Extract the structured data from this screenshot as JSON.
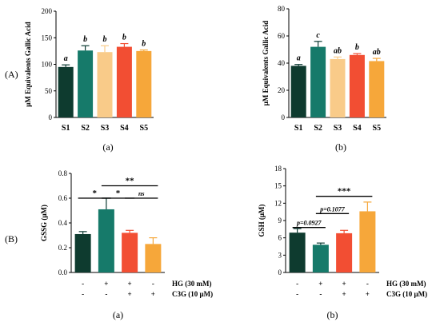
{
  "figure": {
    "rows": [
      {
        "label": "(A)"
      },
      {
        "label": "(B)"
      }
    ]
  },
  "colors": {
    "S1": "#0e3b2f",
    "S2": "#167a6a",
    "S3": "#f9cb89",
    "S4": "#f24e33",
    "S5": "#f6a73a"
  },
  "treatments": {
    "hg_label": "HG (30 mM)",
    "c3g_label": "C3G (10 μM)",
    "hg_signs": [
      "-",
      "+",
      "+",
      "-"
    ],
    "c3g_signs": [
      "-",
      "-",
      "+",
      "+"
    ]
  },
  "chart_data": [
    {
      "id": "A-a",
      "type": "bar",
      "sublabel": "(a)",
      "ylabel": "μM Equivalents Gallic Acid",
      "ylim": [
        0,
        200
      ],
      "yticks": [
        0,
        50,
        100,
        150,
        200
      ],
      "categories": [
        "S1",
        "S2",
        "S3",
        "S4",
        "S5"
      ],
      "values": [
        95,
        126,
        123,
        133,
        125
      ],
      "errors": [
        4,
        9,
        12,
        6,
        2
      ],
      "letters": [
        "a",
        "b",
        "b",
        "b",
        "b"
      ],
      "colors": [
        "#0e3b2f",
        "#167a6a",
        "#f9cb89",
        "#f24e33",
        "#f6a73a"
      ]
    },
    {
      "id": "A-b",
      "type": "bar",
      "sublabel": "(b)",
      "ylabel": "μM Equivalents Gallic Acid",
      "ylim": [
        0,
        80
      ],
      "yticks": [
        0,
        20,
        40,
        60,
        80
      ],
      "categories": [
        "S1",
        "S2",
        "S3",
        "S4",
        "S5"
      ],
      "values": [
        38,
        52,
        43,
        46,
        41.5
      ],
      "errors": [
        1,
        4,
        1.5,
        1,
        2
      ],
      "letters": [
        "a",
        "c",
        "ab",
        "b",
        "ab"
      ],
      "colors": [
        "#0e3b2f",
        "#167a6a",
        "#f9cb89",
        "#f24e33",
        "#f6a73a"
      ]
    },
    {
      "id": "B-a",
      "type": "bar",
      "sublabel": "(a)",
      "ylabel": "GSSG (μM)",
      "ylim": [
        0,
        0.8
      ],
      "yticks": [
        0,
        0.2,
        0.4,
        0.6,
        0.8
      ],
      "ytick_labels": [
        "0.0",
        "0.2",
        "0.4",
        "0.6",
        "0.8"
      ],
      "values": [
        0.31,
        0.51,
        0.32,
        0.23
      ],
      "errors": [
        0.02,
        0.09,
        0.02,
        0.05
      ],
      "colors": [
        "#0e3b2f",
        "#167a6a",
        "#f24e33",
        "#f6a73a"
      ],
      "brackets": [
        {
          "from": 0,
          "to": 1,
          "y": 0.6,
          "label": "*"
        },
        {
          "from": 1,
          "to": 2,
          "y": 0.6,
          "label": "*"
        },
        {
          "from": 2,
          "to": 3,
          "y": 0.6,
          "label": "ns"
        },
        {
          "from": 1,
          "to": 3,
          "y": 0.7,
          "label": "**"
        }
      ]
    },
    {
      "id": "B-b",
      "type": "bar",
      "sublabel": "(b)",
      "ylabel": "GSH (μM)",
      "ylim": [
        0,
        18
      ],
      "yticks": [
        0,
        3,
        6,
        9,
        12,
        15,
        18
      ],
      "values": [
        6.9,
        4.8,
        6.8,
        10.6
      ],
      "errors": [
        0.7,
        0.3,
        0.5,
        1.6
      ],
      "colors": [
        "#0e3b2f",
        "#167a6a",
        "#f24e33",
        "#f6a73a"
      ],
      "brackets": [
        {
          "from": 0,
          "to": 1,
          "y": 7.8,
          "label": "p=0.0927"
        },
        {
          "from": 1,
          "to": 2,
          "y": 10.2,
          "label": "p=0.1077"
        },
        {
          "from": 1,
          "to": 3,
          "y": 13.2,
          "label": "***"
        }
      ]
    }
  ]
}
